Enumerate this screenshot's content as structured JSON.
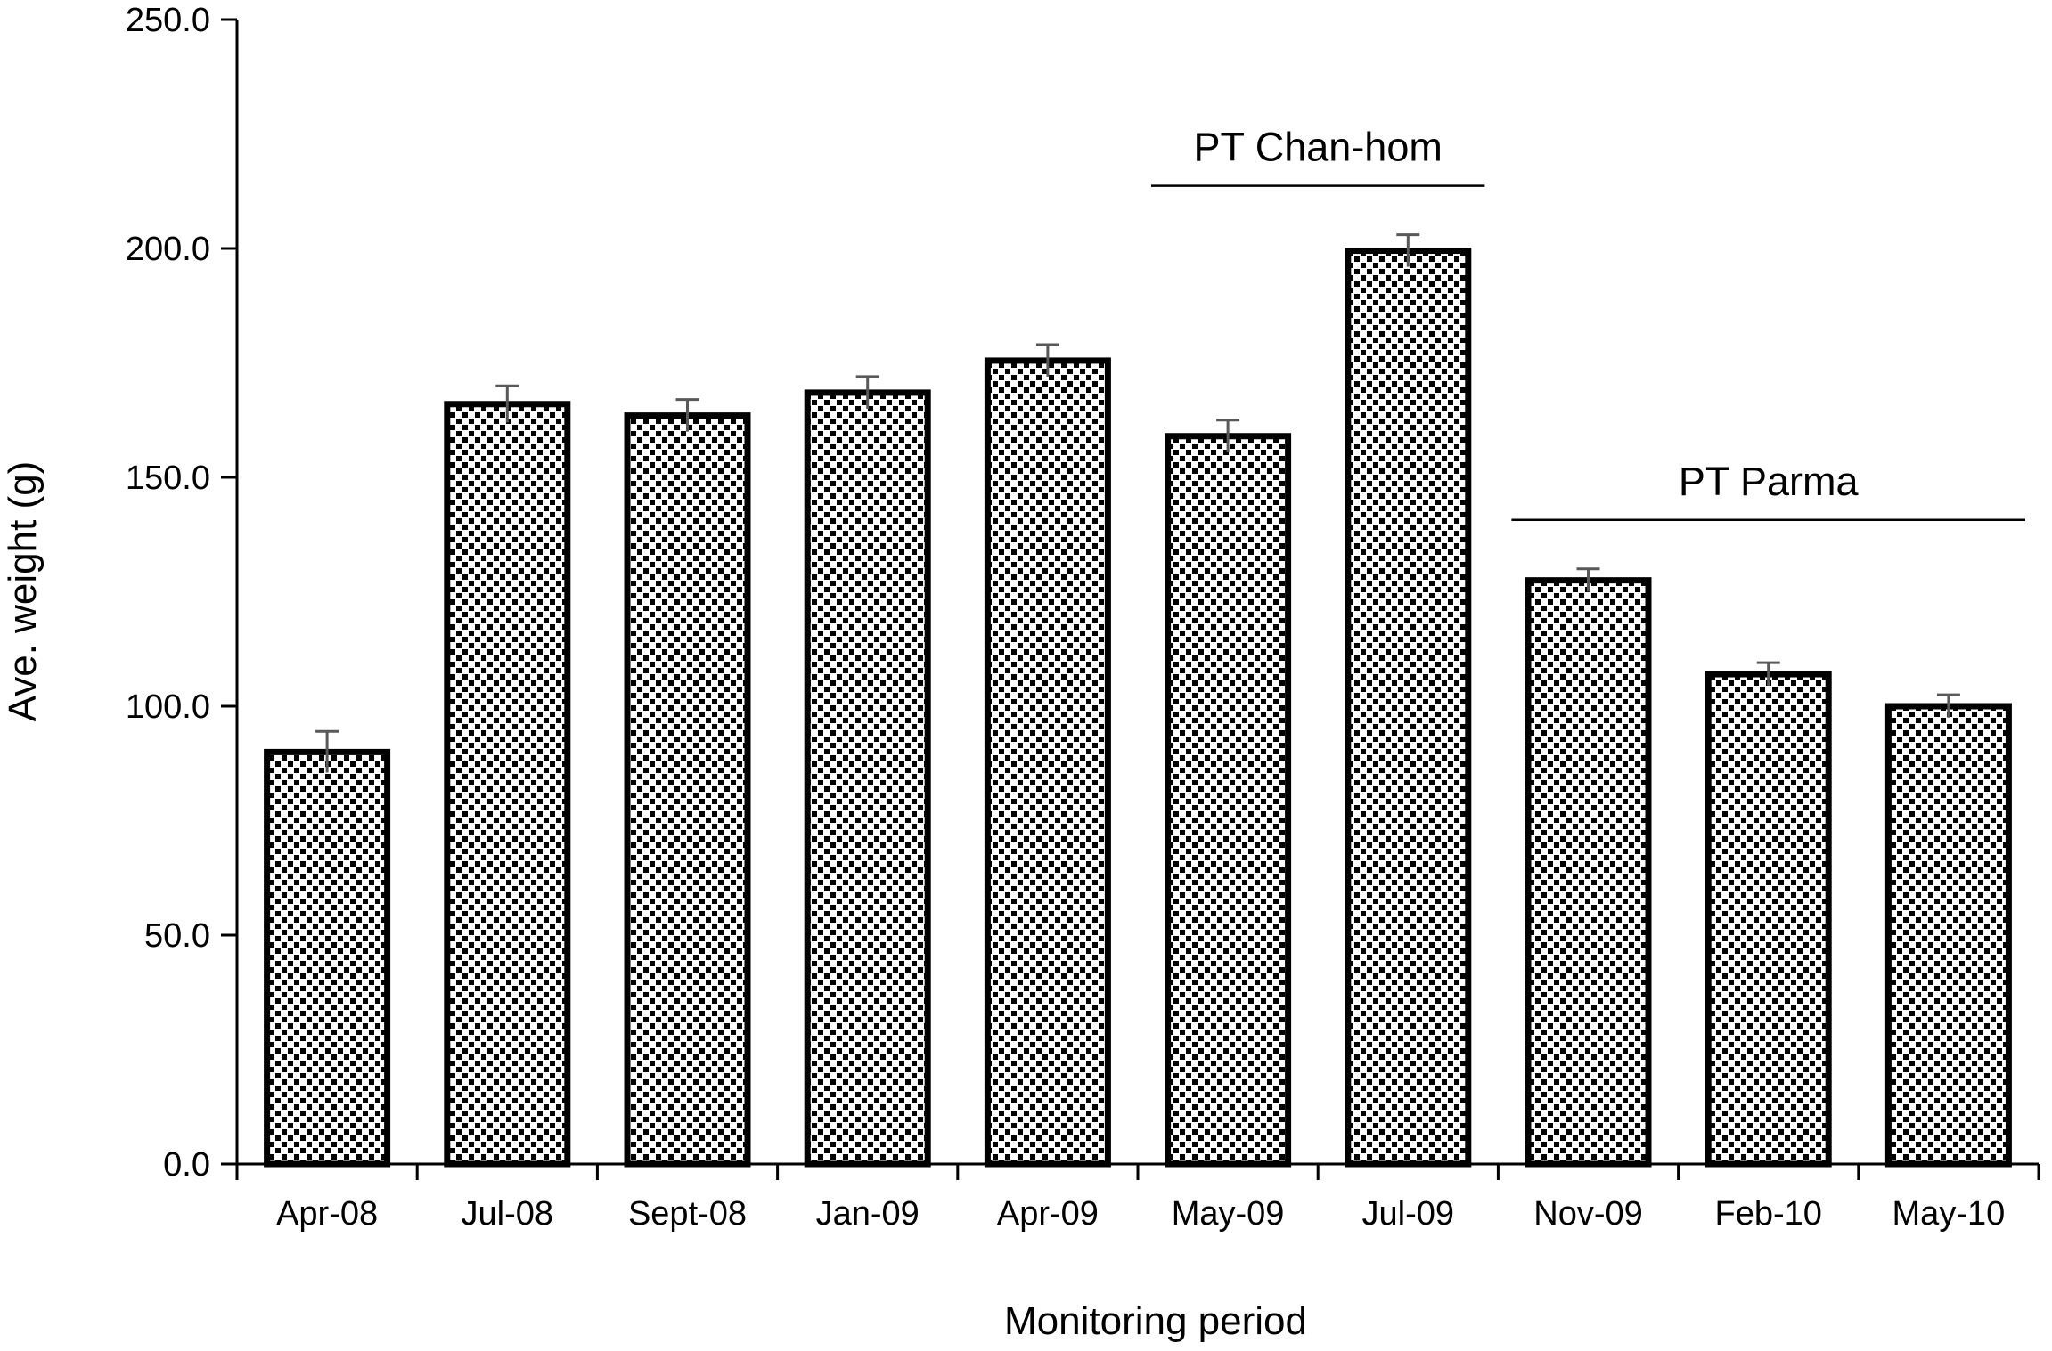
{
  "chart_data": {
    "type": "bar",
    "xlabel": "Monitoring period",
    "ylabel": "Ave. weight (g)",
    "ylim": [
      0,
      250
    ],
    "yticks": [
      "0.0",
      "50.0",
      "100.0",
      "150.0",
      "200.0",
      "250.0"
    ],
    "grid": false,
    "categories": [
      "Apr-08",
      "Jul-08",
      "Sept-08",
      "Jan-09",
      "Apr-09",
      "May-09",
      "Jul-09",
      "Nov-09",
      "Feb-10",
      "May-10"
    ],
    "values": [
      90.0,
      166.0,
      163.5,
      168.5,
      175.5,
      159.0,
      199.5,
      127.5,
      107.0,
      100.0
    ],
    "errors": [
      4.5,
      4.0,
      3.5,
      3.5,
      3.5,
      3.5,
      3.5,
      2.5,
      2.5,
      2.5
    ],
    "annotations": [
      {
        "text": "PT Chan-hom",
        "from": "May-09",
        "to": "Jul-09"
      },
      {
        "text": "PT Parma",
        "from": "Nov-09",
        "to": "May-10"
      }
    ],
    "bar_pattern": "black-white checker dots",
    "colors": {
      "bar_outline": "#000000",
      "bar_fill": "#ffffff",
      "pattern_dot": "#000000",
      "error_bar": "#595959"
    }
  }
}
